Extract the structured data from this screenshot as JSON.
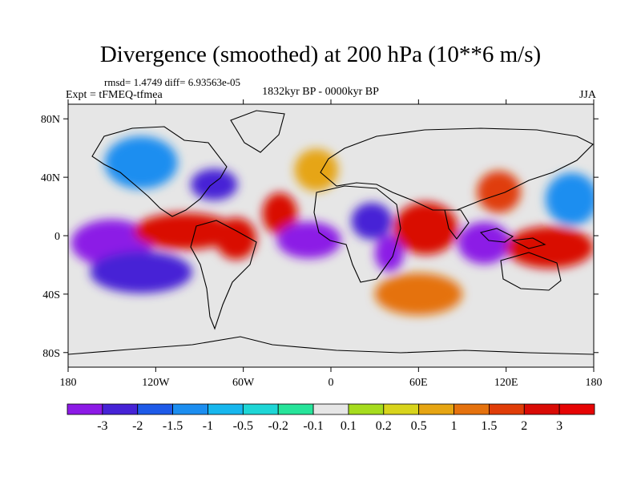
{
  "header": {
    "title": "Divergence (smoothed) at 200 hPa (10**6 m/s)",
    "stats": "rmsd= 1.4749 diff= 6.93563e-05",
    "experiment": "Expt = tFMEQ-tfmea",
    "period": "1832kyr BP - 0000kyr BP",
    "season": "JJA"
  },
  "chart_data": {
    "type": "heatmap",
    "title": "Divergence (smoothed) at 200 hPa (10**6 m/s)",
    "subtitle": "1832kyr BP - 0000kyr BP",
    "units": "10**6 m/s",
    "x_range": [
      -180,
      180
    ],
    "y_range": [
      -90,
      90
    ],
    "x_ticks": [
      {
        "value": -180,
        "label": "180"
      },
      {
        "value": -120,
        "label": "120W"
      },
      {
        "value": -60,
        "label": "60W"
      },
      {
        "value": 0,
        "label": "0"
      },
      {
        "value": 60,
        "label": "60E"
      },
      {
        "value": 120,
        "label": "120E"
      },
      {
        "value": 180,
        "label": "180"
      }
    ],
    "y_ticks": [
      {
        "value": 80,
        "label": "80N"
      },
      {
        "value": 40,
        "label": "40N"
      },
      {
        "value": 0,
        "label": "0"
      },
      {
        "value": -40,
        "label": "40S"
      },
      {
        "value": -80,
        "label": "80S"
      }
    ],
    "colorbar": {
      "levels": [
        "-3",
        "-2",
        "-1.5",
        "-1",
        "-0.5",
        "-0.2",
        "-0.1",
        "0.1",
        "0.2",
        "0.5",
        "1",
        "1.5",
        "2",
        "3"
      ],
      "colors": [
        "#8c1ae6",
        "#4623d6",
        "#1e5ae8",
        "#1c8ef0",
        "#17b7ee",
        "#1ed6d6",
        "#27e49a",
        "#e6e6e6",
        "#a6dc1e",
        "#d8d41c",
        "#e6a513",
        "#e5720e",
        "#e03d08",
        "#d90b05",
        "#e60404"
      ]
    },
    "features": [
      {
        "lon": -150,
        "lat": -5,
        "rx": 28,
        "ry": 9,
        "value": -3
      },
      {
        "lon": -130,
        "lat": -25,
        "rx": 35,
        "ry": 8,
        "value": -2
      },
      {
        "lon": -100,
        "lat": 3,
        "rx": 35,
        "ry": 7,
        "value": 3
      },
      {
        "lon": -65,
        "lat": -2,
        "rx": 14,
        "ry": 8,
        "value": 3
      },
      {
        "lon": -35,
        "lat": 15,
        "rx": 12,
        "ry": 8,
        "value": 3
      },
      {
        "lon": -15,
        "lat": -3,
        "rx": 22,
        "ry": 7,
        "value": -3
      },
      {
        "lon": 28,
        "lat": 10,
        "rx": 14,
        "ry": 7,
        "value": -2
      },
      {
        "lon": 40,
        "lat": -12,
        "rx": 10,
        "ry": 7,
        "value": -3
      },
      {
        "lon": 65,
        "lat": 5,
        "rx": 22,
        "ry": 10,
        "value": 3
      },
      {
        "lon": 105,
        "lat": -5,
        "rx": 18,
        "ry": 8,
        "value": -3
      },
      {
        "lon": 150,
        "lat": -8,
        "rx": 30,
        "ry": 8,
        "value": 3
      },
      {
        "lon": 115,
        "lat": 30,
        "rx": 15,
        "ry": 8,
        "value": 2
      },
      {
        "lon": 165,
        "lat": 25,
        "rx": 18,
        "ry": 10,
        "value": -1
      },
      {
        "lon": -80,
        "lat": 35,
        "rx": 16,
        "ry": 6,
        "value": -2
      },
      {
        "lon": 60,
        "lat": -40,
        "rx": 30,
        "ry": 8,
        "value": 1.5
      },
      {
        "lon": -130,
        "lat": 50,
        "rx": 25,
        "ry": 10,
        "value": -1
      },
      {
        "lon": -10,
        "lat": 45,
        "rx": 15,
        "ry": 8,
        "value": 1
      }
    ]
  }
}
